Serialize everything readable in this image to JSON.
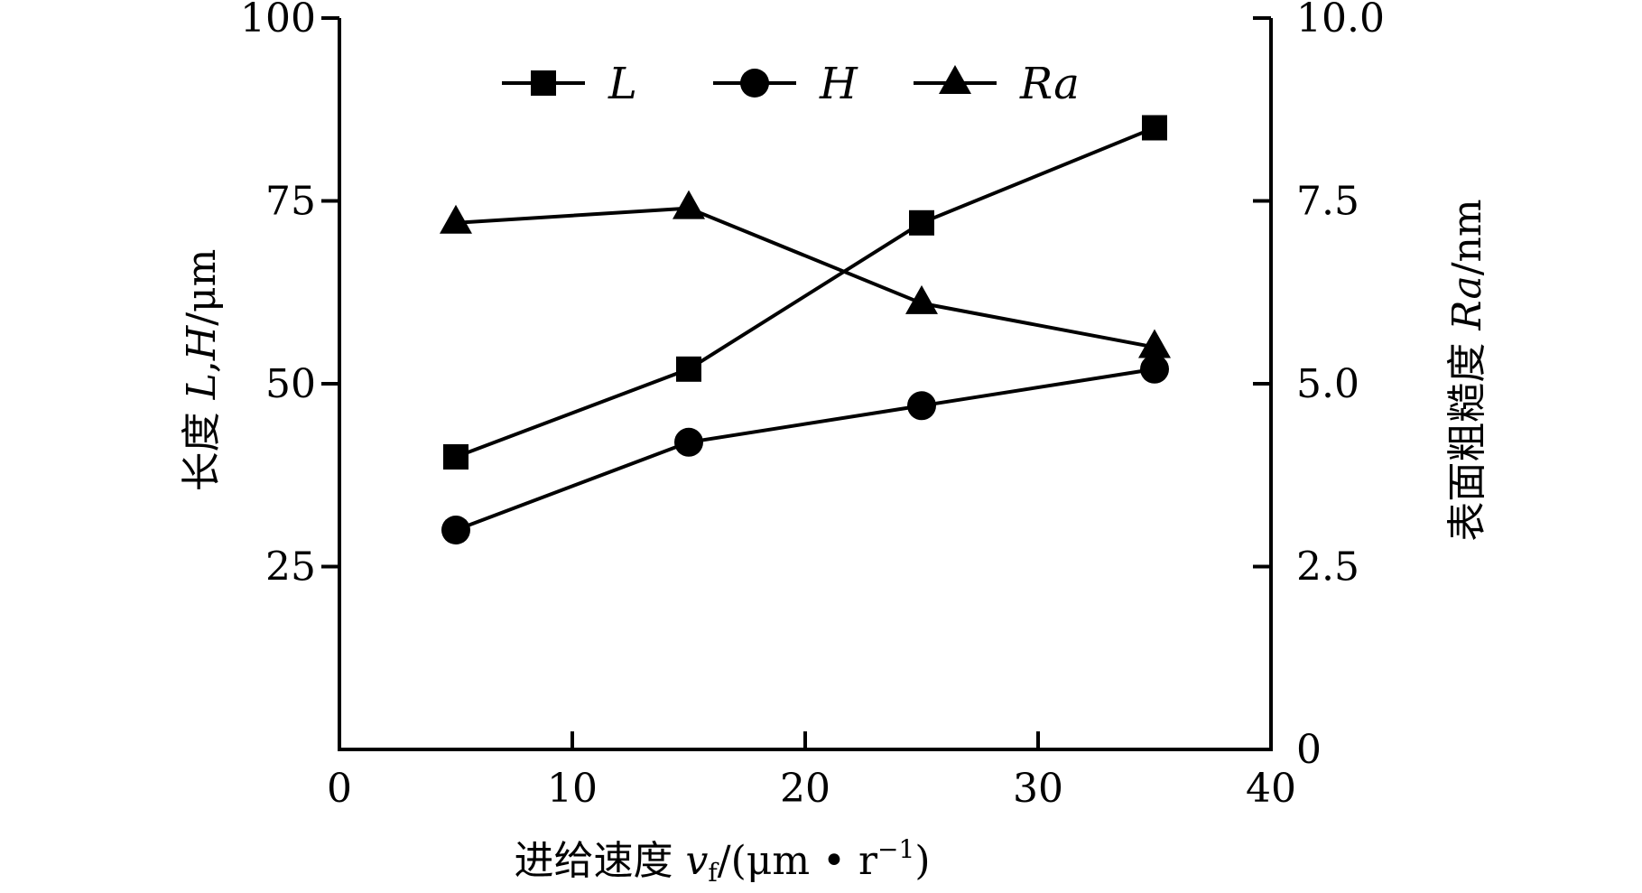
{
  "chart_data": {
    "type": "line",
    "x": [
      5,
      15,
      25,
      35
    ],
    "xlim": [
      0,
      40
    ],
    "xticks": [
      "0",
      "10",
      "20",
      "30",
      "40"
    ],
    "xlabel_parts": [
      "进给速度 ",
      "v",
      "f",
      "/(μm • r",
      "−1",
      ")"
    ],
    "ylim_left": [
      0,
      100
    ],
    "yticks_left": [
      "25",
      "50",
      "75",
      "100"
    ],
    "ylabel_left_parts": [
      "长度 ",
      "L",
      ",",
      "H",
      "/μm"
    ],
    "ylim_right": [
      0,
      10
    ],
    "yticks_right": [
      "0",
      "2.5",
      "5.0",
      "7.5",
      "10.0"
    ],
    "ylabel_right_parts": [
      "表面粗糙度 ",
      "Ra",
      "/nm"
    ],
    "series": [
      {
        "name": "L",
        "axis": "left",
        "marker": "square",
        "values": [
          40,
          52,
          72,
          85
        ]
      },
      {
        "name": "H",
        "axis": "left",
        "marker": "circle",
        "values": [
          30,
          42,
          47,
          52
        ]
      },
      {
        "name": "Ra",
        "axis": "right",
        "marker": "triangle",
        "values": [
          7.2,
          7.4,
          6.1,
          5.5
        ]
      }
    ],
    "legend_position": "top",
    "grid": false
  }
}
